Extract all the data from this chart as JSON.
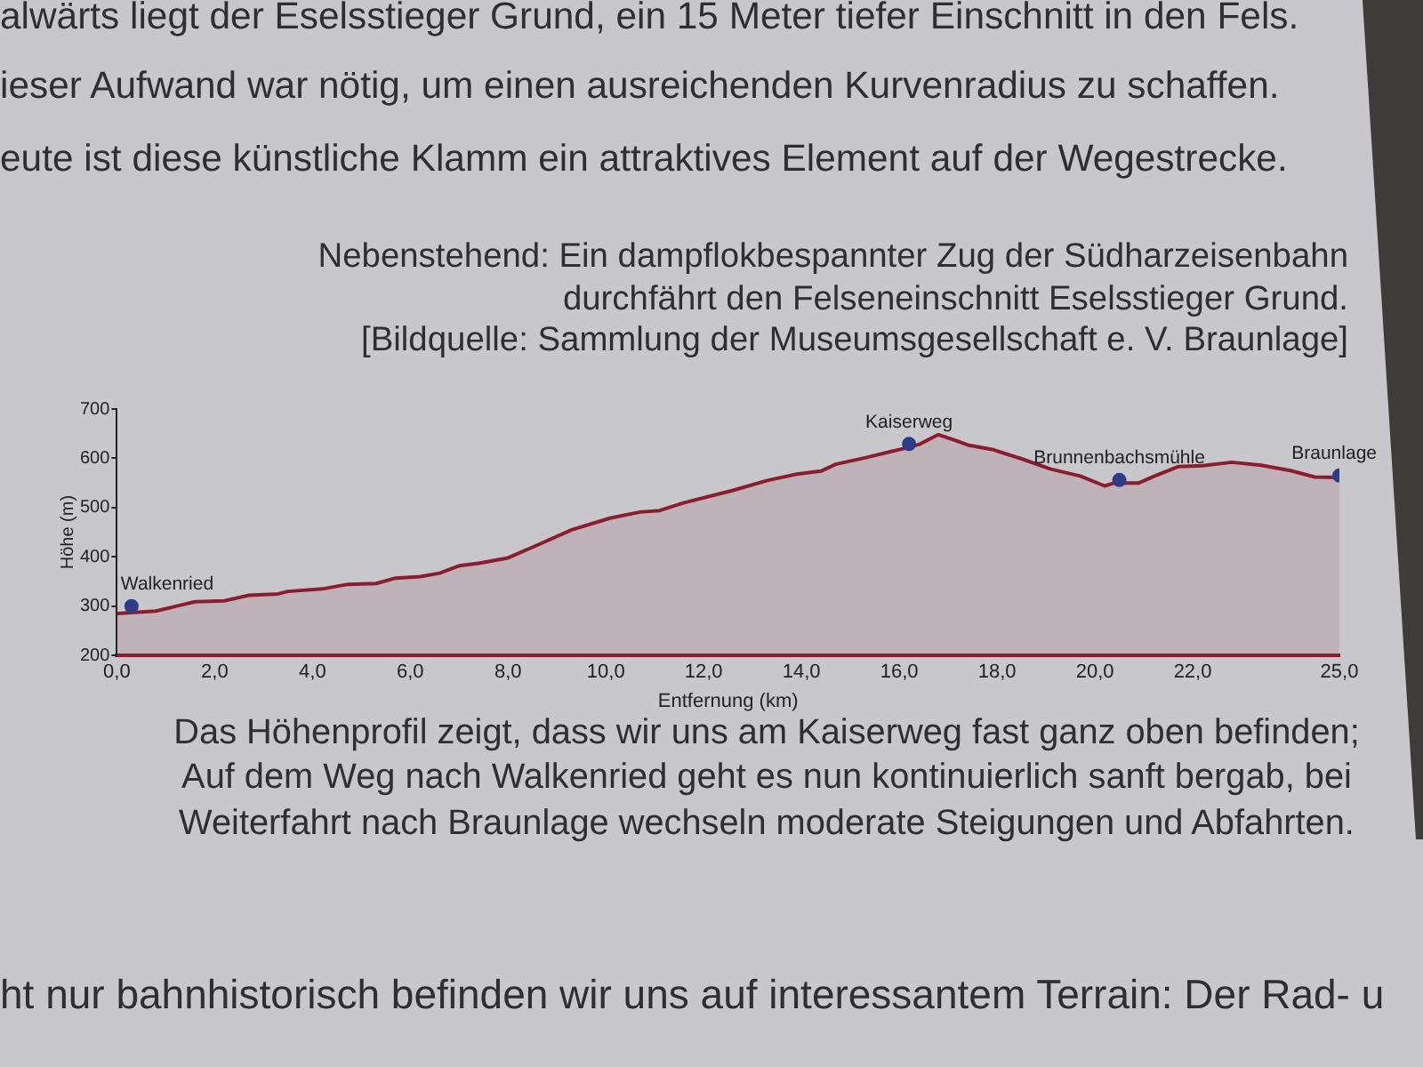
{
  "chart_data": {
    "type": "area",
    "xlabel": "Entfernung (km)",
    "ylabel": "Höhe (m)",
    "xlim": [
      0,
      25
    ],
    "xticks": [
      {
        "value": 0,
        "label": "0,0"
      },
      {
        "value": 2,
        "label": "2,0"
      },
      {
        "value": 4,
        "label": "4,0"
      },
      {
        "value": 6,
        "label": "6,0"
      },
      {
        "value": 8,
        "label": "8,0"
      },
      {
        "value": 10,
        "label": "10,0"
      },
      {
        "value": 12,
        "label": "12,0"
      },
      {
        "value": 14,
        "label": "14,0"
      },
      {
        "value": 16,
        "label": "16,0"
      },
      {
        "value": 18,
        "label": "18,0"
      },
      {
        "value": 20,
        "label": "20,0"
      },
      {
        "value": 22,
        "label": "22,0"
      },
      {
        "value": 25,
        "label": "25,0"
      }
    ],
    "ylim": [
      200,
      700
    ],
    "yticks": [
      200,
      300,
      400,
      500,
      600,
      700
    ],
    "series": [
      {
        "color": "#8b1e2e",
        "x": [
          0,
          0.8,
          1.3,
          1.6,
          2.2,
          2.7,
          3.3,
          3.5,
          4.2,
          4.7,
          5.3,
          5.7,
          6.2,
          6.6,
          7.0,
          7.4,
          8.0,
          8.6,
          9.3,
          10.1,
          10.7,
          11.1,
          11.6,
          12.6,
          13.3,
          13.9,
          14.4,
          14.7,
          15.3,
          15.8,
          16.1,
          16.4,
          16.8,
          17.1,
          17.4,
          17.9,
          18.5,
          19.1,
          19.7,
          20.2,
          20.4,
          20.9,
          21.2,
          21.7,
          22.2,
          22.8,
          23.4,
          24.0,
          24.5,
          25.0
        ],
        "values": [
          285,
          290,
          302,
          309,
          311,
          322,
          325,
          330,
          335,
          344,
          346,
          357,
          360,
          367,
          382,
          387,
          398,
          424,
          455,
          479,
          491,
          494,
          510,
          535,
          555,
          568,
          574,
          588,
          601,
          613,
          620,
          628,
          648,
          638,
          627,
          618,
          599,
          578,
          564,
          544,
          550,
          550,
          563,
          583,
          585,
          592,
          586,
          575,
          562,
          561
        ]
      },
      {
        "type": "scatter",
        "color": "#2c3c86",
        "marker": "circle",
        "x": [
          0.3,
          16.2,
          20.5,
          25.0
        ],
        "values": [
          300,
          629,
          556,
          565
        ]
      }
    ],
    "annotations": [
      "alwärts liegt der Eselsstieger Grund, ein 15 Meter tiefer Einschnitt in den Fels.",
      "ieser Aufwand war nötig, um einen ausreichenden Kurvenradius zu schaffen.",
      "eute ist diese künstliche Klamm ein attraktives Element auf der Wegestrecke.",
      "Nebenstehend: Ein dampflokbespannter Zug der Südharzeisenbahn",
      "durchfährt den Felseneinschnitt Eselsstieger Grund.",
      "[Bildquelle: Sammlung der Museumsgesellschaft e. V. Braunlage]",
      {
        "text": "Walkenried",
        "x": 0.3,
        "y": 300
      },
      {
        "text": "Kaiserweg",
        "x": 16.2,
        "y": 629
      },
      {
        "text": "Brunnenbachsmühle",
        "x": 20.5,
        "y": 556
      },
      {
        "text": "Braunlage",
        "x": 25.0,
        "y": 565
      },
      "Das Höhenprofil zeigt, dass wir uns am Kaiserweg fast ganz oben befinden;",
      "Auf dem Weg nach Walkenried geht es nun kontinuierlich sanft bergab, bei",
      "Weiterfahrt nach Braunlage wechseln moderate Steigungen und Abfahrten.",
      "ht nur bahnhistorisch befinden wir uns auf interessantem Terrain:  Der Rad- u"
    ]
  }
}
